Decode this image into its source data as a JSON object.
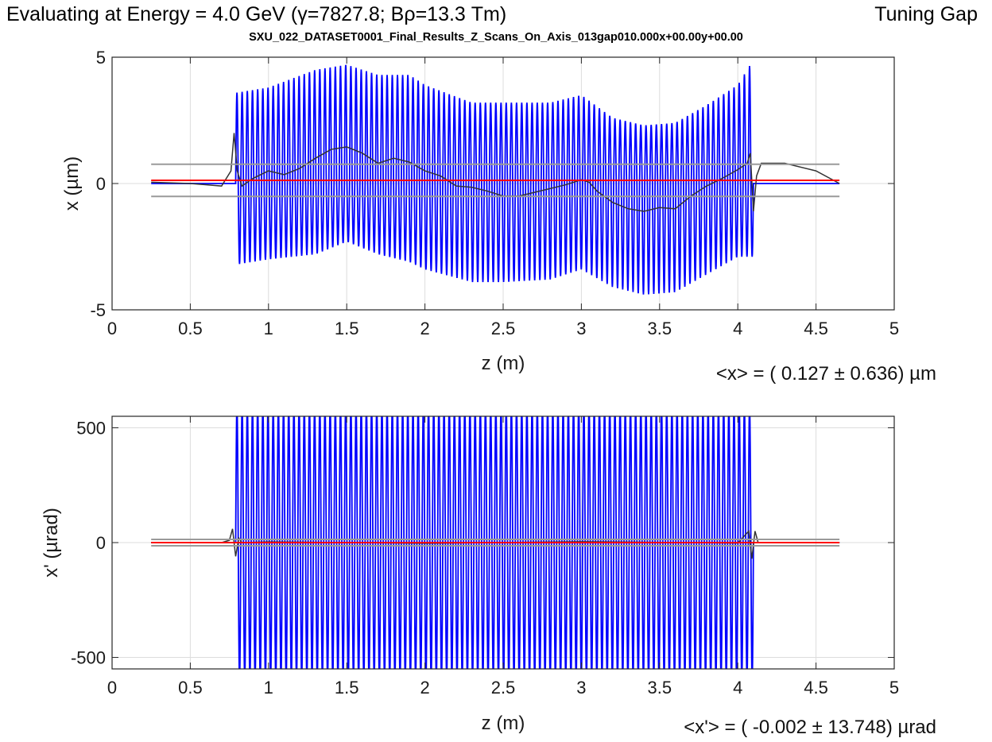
{
  "header": {
    "title_lhs": "Evaluating at Energy = ",
    "title_energy": "4.0 GeV",
    "title_gamma": "(γ=7827.8; Bρ=13.3 Tm)",
    "title_right": "Tuning Gap",
    "subtitle": "SXU_022_DATASET0001_Final_Results_Z_Scans_On_Axis_013gap010.000x+00.00y+00.00"
  },
  "colors": {
    "oscillation": "#0000ff",
    "trajectory": "#333333",
    "mean": "#ff0000",
    "band": "#9a9a9a",
    "grid": "#dcdcdc"
  },
  "chart_data": [
    {
      "type": "line",
      "xlabel": "z (m)",
      "ylabel": "x (µm)",
      "xlim": [
        0,
        5
      ],
      "ylim": [
        -5,
        5
      ],
      "xticks": [
        "0",
        "0.5",
        "1",
        "1.5",
        "2",
        "2.5",
        "3",
        "3.5",
        "4",
        "4.5",
        "5"
      ],
      "yticks": [
        "-5",
        "0",
        "5"
      ],
      "ytick_values": [
        -5,
        0,
        5
      ],
      "grid": true,
      "stat_label": "<x> = (   0.127 ± 0.636) µm",
      "series": [
        {
          "style": "oscillation",
          "z_range": [
            0.25,
            4.65
          ],
          "undulator_z": [
            0.79,
            4.1
          ],
          "periods": 100,
          "upper_envelope": [
            [
              0.8,
              3.6
            ],
            [
              1.0,
              3.8
            ],
            [
              1.3,
              4.5
            ],
            [
              1.5,
              4.7
            ],
            [
              1.7,
              4.3
            ],
            [
              1.9,
              4.3
            ],
            [
              2.0,
              3.9
            ],
            [
              2.3,
              3.2
            ],
            [
              2.5,
              3.2
            ],
            [
              2.8,
              3.2
            ],
            [
              3.0,
              3.5
            ],
            [
              3.2,
              2.6
            ],
            [
              3.4,
              2.3
            ],
            [
              3.6,
              2.4
            ],
            [
              3.8,
              3.1
            ],
            [
              4.0,
              3.9
            ],
            [
              4.08,
              4.7
            ]
          ],
          "lower_envelope": [
            [
              0.8,
              -3.2
            ],
            [
              1.0,
              -3.0
            ],
            [
              1.3,
              -2.8
            ],
            [
              1.5,
              -2.3
            ],
            [
              1.7,
              -2.8
            ],
            [
              1.9,
              -3.1
            ],
            [
              2.0,
              -3.4
            ],
            [
              2.3,
              -3.9
            ],
            [
              2.5,
              -3.9
            ],
            [
              2.8,
              -3.8
            ],
            [
              3.0,
              -3.4
            ],
            [
              3.2,
              -4.1
            ],
            [
              3.4,
              -4.4
            ],
            [
              3.6,
              -4.3
            ],
            [
              3.8,
              -3.6
            ],
            [
              4.0,
              -2.9
            ],
            [
              4.08,
              -2.9
            ]
          ]
        },
        {
          "style": "trajectory",
          "x": [
            0.25,
            0.5,
            0.7,
            0.76,
            0.78,
            0.8,
            0.83,
            0.9,
            1.0,
            1.1,
            1.2,
            1.3,
            1.4,
            1.5,
            1.6,
            1.7,
            1.8,
            1.9,
            2.0,
            2.1,
            2.2,
            2.3,
            2.4,
            2.5,
            2.6,
            2.7,
            2.8,
            2.9,
            3.0,
            3.05,
            3.1,
            3.2,
            3.3,
            3.4,
            3.5,
            3.6,
            3.7,
            3.8,
            3.9,
            4.0,
            4.06,
            4.08,
            4.1,
            4.12,
            4.15,
            4.3,
            4.5,
            4.65
          ],
          "y": [
            0.05,
            0.0,
            -0.1,
            0.5,
            2.0,
            0.5,
            -0.1,
            0.2,
            0.5,
            0.35,
            0.6,
            1.0,
            1.35,
            1.45,
            1.2,
            0.8,
            1.0,
            0.85,
            0.5,
            0.3,
            -0.1,
            -0.15,
            -0.3,
            -0.5,
            -0.5,
            -0.35,
            -0.2,
            -0.05,
            0.15,
            0.05,
            -0.3,
            -0.75,
            -1.0,
            -1.1,
            -0.95,
            -1.0,
            -0.5,
            -0.1,
            0.2,
            0.55,
            0.8,
            1.2,
            -1.1,
            0.3,
            0.8,
            0.8,
            0.5,
            0.0
          ]
        },
        {
          "style": "mean",
          "x": [
            0.25,
            4.65
          ],
          "y": [
            0.127,
            0.127
          ]
        },
        {
          "style": "band",
          "x": [
            0.25,
            4.65
          ],
          "y": [
            0.763,
            0.763
          ]
        },
        {
          "style": "band",
          "x": [
            0.25,
            4.65
          ],
          "y": [
            -0.509,
            -0.509
          ]
        }
      ]
    },
    {
      "type": "line",
      "xlabel": "z (m)",
      "ylabel": "x' (µrad)",
      "xlim": [
        0,
        5
      ],
      "ylim": [
        -550,
        550
      ],
      "xticks": [
        "0",
        "0.5",
        "1",
        "1.5",
        "2",
        "2.5",
        "3",
        "3.5",
        "4",
        "4.5",
        "5"
      ],
      "yticks": [
        "-500",
        "0",
        "500"
      ],
      "ytick_values": [
        -500,
        0,
        500
      ],
      "grid": true,
      "stat_label": "<x'> = ( -0.002 ± 13.748) µrad",
      "series": [
        {
          "style": "oscillation",
          "z_range": [
            0.25,
            4.65
          ],
          "undulator_z": [
            0.79,
            4.1
          ],
          "periods": 100,
          "amplitude": 600,
          "clipped_to_ylim": true,
          "upper_envelope": [
            [
              0.8,
              600
            ],
            [
              4.08,
              600
            ]
          ],
          "lower_envelope": [
            [
              0.8,
              -600
            ],
            [
              4.08,
              -600
            ]
          ]
        },
        {
          "style": "trajectory",
          "x": [
            0.25,
            0.7,
            0.75,
            0.77,
            0.79,
            0.81,
            0.83,
            1.0,
            2.0,
            3.0,
            4.0,
            4.07,
            4.09,
            4.11,
            4.13,
            4.2,
            4.65
          ],
          "y": [
            0,
            0,
            10,
            60,
            -60,
            20,
            0,
            3,
            -3,
            4,
            -2,
            50,
            -70,
            50,
            0,
            0,
            0
          ]
        },
        {
          "style": "mean",
          "x": [
            0.25,
            4.65
          ],
          "y": [
            -0.002,
            -0.002
          ]
        },
        {
          "style": "band",
          "x": [
            0.25,
            4.65
          ],
          "y": [
            13.746,
            13.746
          ]
        },
        {
          "style": "band",
          "x": [
            0.25,
            4.65
          ],
          "y": [
            -13.75,
            -13.75
          ]
        }
      ]
    }
  ]
}
